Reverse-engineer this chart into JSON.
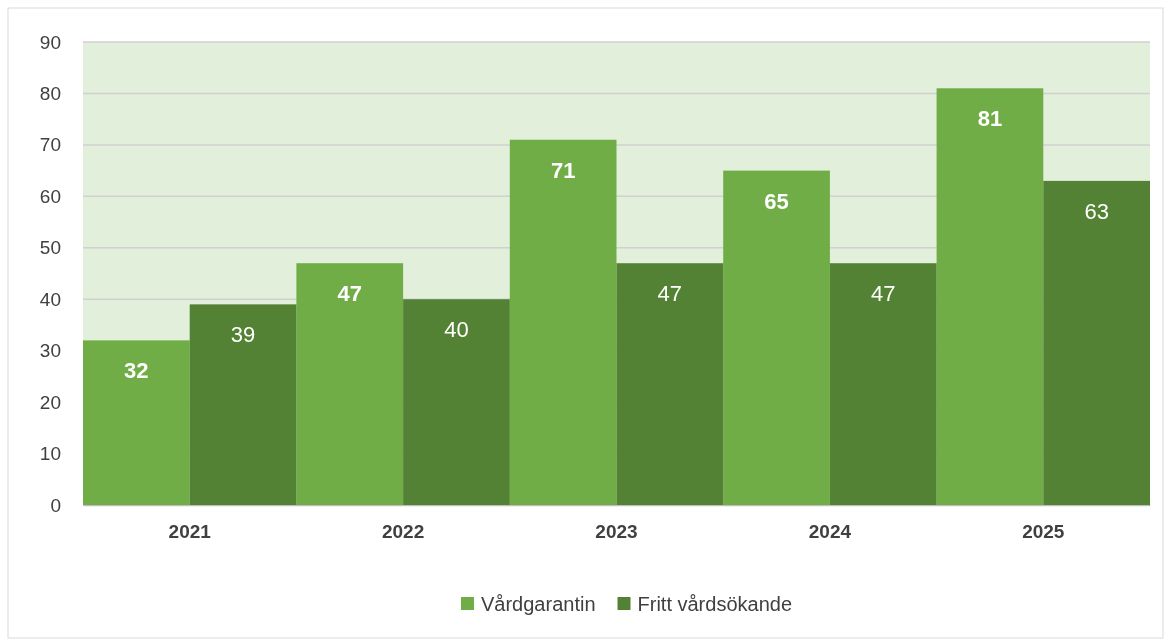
{
  "chart_data": {
    "type": "bar",
    "categories": [
      "2021",
      "2022",
      "2023",
      "2024",
      "2025"
    ],
    "series": [
      {
        "name": "Vårdgarantin",
        "color": "#70ad47",
        "values": [
          32,
          47,
          71,
          65,
          81
        ]
      },
      {
        "name": "Fritt vårdsökande",
        "color": "#548235",
        "values": [
          39,
          40,
          47,
          47,
          63
        ]
      }
    ],
    "ylim": [
      0,
      90
    ],
    "yticks": [
      0,
      10,
      20,
      30,
      40,
      50,
      60,
      70,
      80,
      90
    ],
    "grid": "y",
    "legend": "bottom",
    "data_labels": true
  }
}
